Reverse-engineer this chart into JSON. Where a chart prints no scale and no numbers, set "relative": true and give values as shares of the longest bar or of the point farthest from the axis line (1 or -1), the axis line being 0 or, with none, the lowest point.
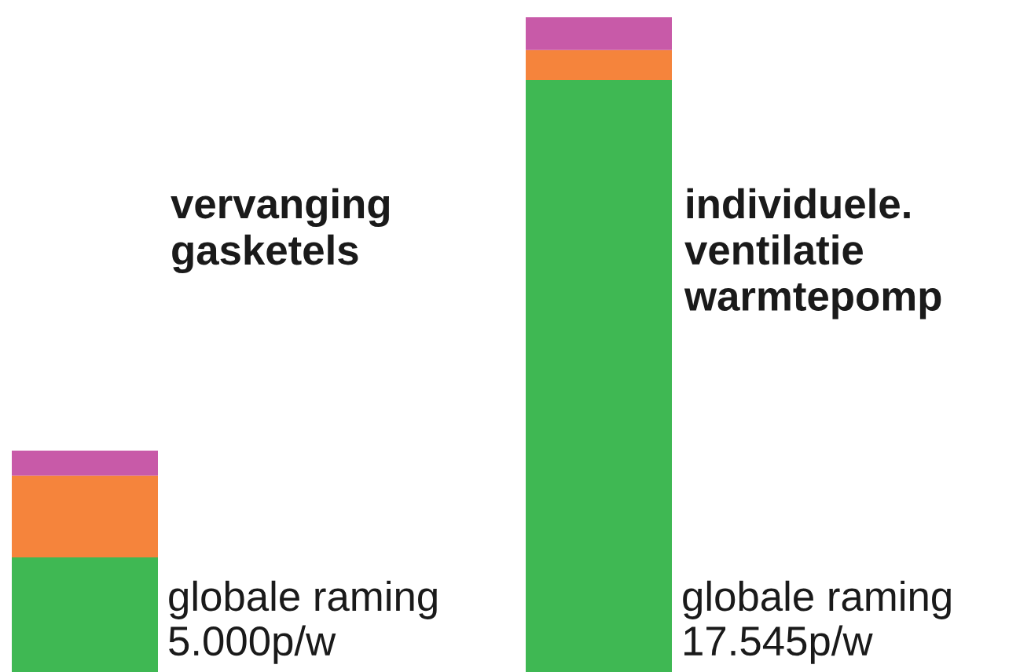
{
  "chart_data": {
    "type": "bar",
    "stacked": true,
    "relative": true,
    "legend": false,
    "categories": [
      "vervanging gasketels",
      "individuele. ventilatie warmtepomp"
    ],
    "series": [
      {
        "color": "#3fb853",
        "values": [
          0.175,
          0.904
        ]
      },
      {
        "color": "#f5843c",
        "values": [
          0.125,
          0.046
        ]
      },
      {
        "color": "#c85aa8",
        "values": [
          0.038,
          0.05
        ]
      }
    ],
    "annotations": [
      "globale raming 5.000p/w",
      "globale raming 17.545p/w"
    ]
  }
}
